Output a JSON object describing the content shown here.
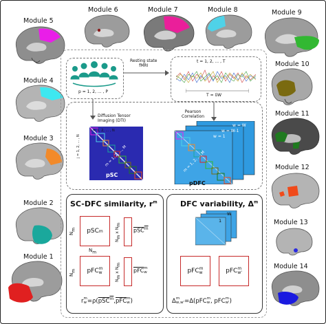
{
  "modules": [
    {
      "label": "Module 5",
      "color": "#e91ee8"
    },
    {
      "label": "Module 6",
      "color": "#8a1b1b"
    },
    {
      "label": "Module 7",
      "color": "#ea1f9a"
    },
    {
      "label": "Module 8",
      "color": "#4fd2e8"
    },
    {
      "label": "Module 9",
      "color": "#32b832"
    },
    {
      "label": "Module 4",
      "color": "#3ee8f0"
    },
    {
      "label": "Module 10",
      "color": "#7a6a10"
    },
    {
      "label": "Module 3",
      "color": "#f28a2a"
    },
    {
      "label": "Module 11",
      "color": "#1f7a1f"
    },
    {
      "label": "Module 12",
      "color": "#f04a1a"
    },
    {
      "label": "Module 2",
      "color": "#1aa89c"
    },
    {
      "label": "Module 13",
      "color": "#2a2ae0"
    },
    {
      "label": "Module 1",
      "color": "#e02020"
    },
    {
      "label": "Module 14",
      "color": "#1a1ae0"
    }
  ],
  "pipeline": {
    "subjects": "p = 1, 2, ... , P",
    "fmri_arrow": "Resting state\nfMRI",
    "time_label": "t = 1, 2, ... , T",
    "window_label": "T = δW",
    "dti_arrow": "Diffusion Tensor\nImaging (DTI)",
    "pearson_arrow": "Pearson\nCorrelation",
    "psc_title": "pSC",
    "pdfc_title": "pDFC",
    "psc_axis": "i = 1, 2, ... , N",
    "psc_row": "j = 1, 2, ... , N",
    "psc_diag": "m = 1, 2, ..., M",
    "pdfc_diag": "m = 1, 2, ..., M",
    "window_labels": [
      "w = W",
      "w = W-1",
      "w = 1"
    ]
  },
  "sc_dfc": {
    "heading": "SC-DFC similarity, r",
    "heading_sup": "m",
    "psc_box": "pSC",
    "pfc_box": "pFC",
    "pfc_sub": "w",
    "nm": "N",
    "nm_sub": "m",
    "nmxnm": "N",
    "bar_psc": "pSC",
    "bar_pfc": "pFC",
    "formula": "r  = ρ(pSC  , pFC  )"
  },
  "dfc_var": {
    "heading": "DFC variability, Δ",
    "heading_sup": "m",
    "w_label": "W",
    "one_label": "1",
    "box1": "pFC",
    "box2": "pFC",
    "formula": "Δ   = Δ(pFC  , pFC  )"
  }
}
